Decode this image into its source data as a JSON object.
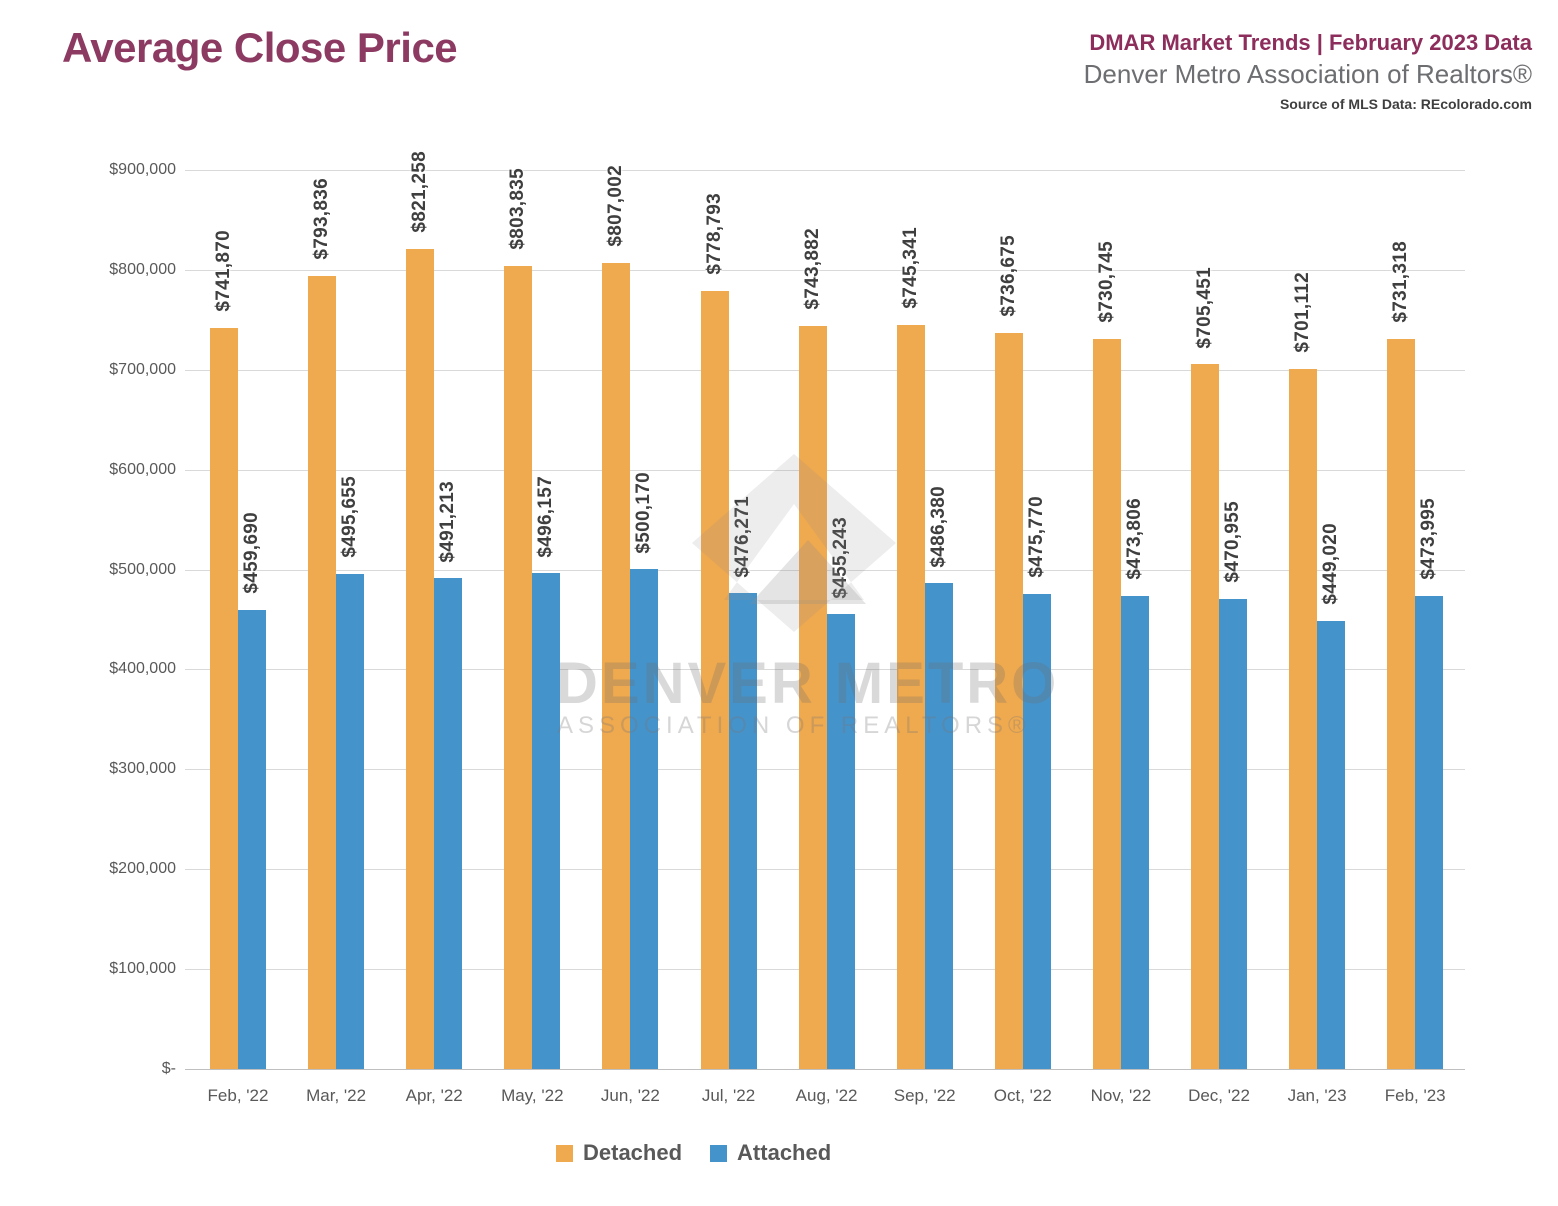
{
  "page": {
    "title": "Average Close Price",
    "header": {
      "line1": "DMAR Market Trends | February 2023 Data",
      "line2": "Denver Metro Association of Realtors®",
      "line3": "Source of MLS Data: REcolorado.com"
    }
  },
  "watermark": {
    "line1": "DENVER METRO",
    "line2": "ASSOCIATION OF REALTORS®",
    "logo_icon": "dmar-diamond-mountain-logo"
  },
  "colors": {
    "title_plum": "#8C3A62",
    "header_maroon": "#8D2D5C",
    "subtitle_gray": "#6D6E71",
    "source_text": "#3F3F3F",
    "detached_orange": "#EFA94F",
    "attached_blue": "#4593CB",
    "axis_text": "#595959",
    "value_label_text": "#3F3F3F",
    "gridline": "#D9D9D9"
  },
  "chart_data": {
    "type": "bar",
    "title": "Average Close Price",
    "xlabel": "",
    "ylabel": "",
    "grid": true,
    "legend_position": "bottom",
    "value_label_style": "rotated 90°, above each bar, format $#,##0",
    "ylim": [
      0,
      900000
    ],
    "yticks": [
      {
        "value": 900000,
        "label": "$900,000"
      },
      {
        "value": 800000,
        "label": "$800,000"
      },
      {
        "value": 700000,
        "label": "$700,000"
      },
      {
        "value": 600000,
        "label": "$600,000"
      },
      {
        "value": 500000,
        "label": "$500,000"
      },
      {
        "value": 400000,
        "label": "$400,000"
      },
      {
        "value": 300000,
        "label": "$300,000"
      },
      {
        "value": 200000,
        "label": "$200,000"
      },
      {
        "value": 100000,
        "label": "$100,000"
      },
      {
        "value": 0,
        "label": "$-"
      }
    ],
    "categories": [
      "Feb, '22",
      "Mar, '22",
      "Apr, '22",
      "May, '22",
      "Jun, '22",
      "Jul, '22",
      "Aug, '22",
      "Sep, '22",
      "Oct, '22",
      "Nov, '22",
      "Dec, '22",
      "Jan, '23",
      "Feb, '23"
    ],
    "series": [
      {
        "name": "Detached",
        "color": "#EFA94F",
        "values": [
          741870,
          793836,
          821258,
          803835,
          807002,
          778793,
          743882,
          745341,
          736675,
          730745,
          705451,
          701112,
          731318
        ]
      },
      {
        "name": "Attached",
        "color": "#4593CB",
        "values": [
          459690,
          495655,
          491213,
          496157,
          500170,
          476271,
          455243,
          486380,
          475770,
          473806,
          470955,
          449020,
          473995
        ]
      }
    ]
  }
}
